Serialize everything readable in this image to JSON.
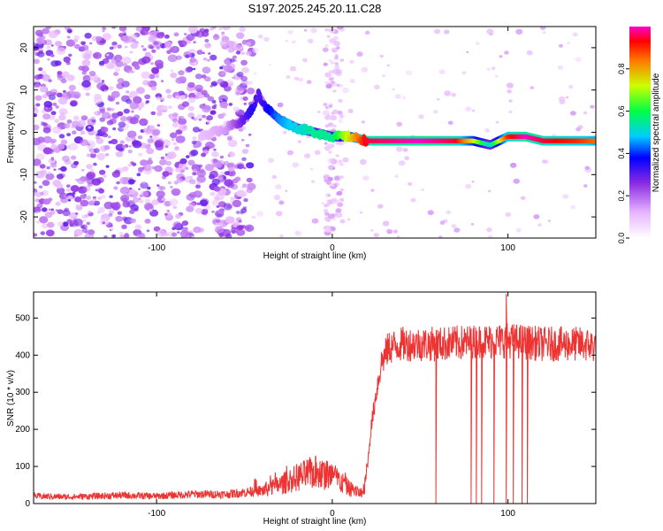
{
  "title": "S197.2025.245.20.11.C28",
  "chart_data": [
    {
      "type": "heatmap",
      "xlabel": "Height of straight line (km)",
      "ylabel": "Frequency (Hz)",
      "xlim": [
        -170,
        150
      ],
      "ylim": [
        -25,
        25
      ],
      "x_ticks": [
        -100,
        0,
        100
      ],
      "y_ticks": [
        -20,
        -10,
        0,
        10,
        20
      ],
      "colorbar": {
        "label": "Normalized spectral amplitude",
        "range": [
          0,
          1
        ],
        "ticks": [
          "0.0",
          "0.2",
          "0.4",
          "0.6",
          "0.8"
        ],
        "colormap": "rainbow"
      },
      "ridge": {
        "x": [
          -75,
          -60,
          -50,
          -45,
          -42,
          -38,
          -30,
          -20,
          -10,
          0,
          10,
          20,
          50,
          70,
          80,
          90,
          100,
          110,
          120,
          140,
          150
        ],
        "frequency_hz": [
          -1,
          1,
          3,
          6,
          9,
          6,
          3,
          1,
          0,
          -1,
          -1,
          -2,
          -2,
          -2,
          -2,
          -3,
          -1,
          -1,
          -2,
          -2,
          -2
        ],
        "amplitude": [
          0.1,
          0.15,
          0.3,
          0.35,
          0.3,
          0.35,
          0.45,
          0.5,
          0.55,
          0.55,
          0.75,
          0.95,
          1.0,
          0.95,
          0.75,
          0.5,
          0.9,
          1.0,
          0.95,
          0.9,
          0.85
        ]
      }
    },
    {
      "type": "line",
      "xlabel": "Height of straight line (km)",
      "ylabel": "SNR (10 * v/v)",
      "xlim": [
        -170,
        150
      ],
      "ylim": [
        0,
        570
      ],
      "x_ticks": [
        -100,
        0,
        100
      ],
      "y_ticks": [
        0,
        100,
        200,
        300,
        400,
        500
      ],
      "color": "#ee3333",
      "x": [
        -170,
        -150,
        -120,
        -100,
        -80,
        -60,
        -40,
        -30,
        -20,
        -10,
        0,
        10,
        18,
        20,
        22,
        25,
        28,
        32,
        40,
        60,
        80,
        100,
        120,
        140,
        150
      ],
      "values": [
        20,
        18,
        22,
        20,
        25,
        25,
        35,
        50,
        70,
        85,
        75,
        40,
        25,
        100,
        200,
        300,
        380,
        420,
        430,
        430,
        435,
        440,
        430,
        430,
        425
      ],
      "dropouts_x": [
        59,
        79,
        82,
        85,
        92,
        99,
        103,
        108,
        111
      ],
      "spike": {
        "x": 99,
        "y": 565
      }
    }
  ]
}
